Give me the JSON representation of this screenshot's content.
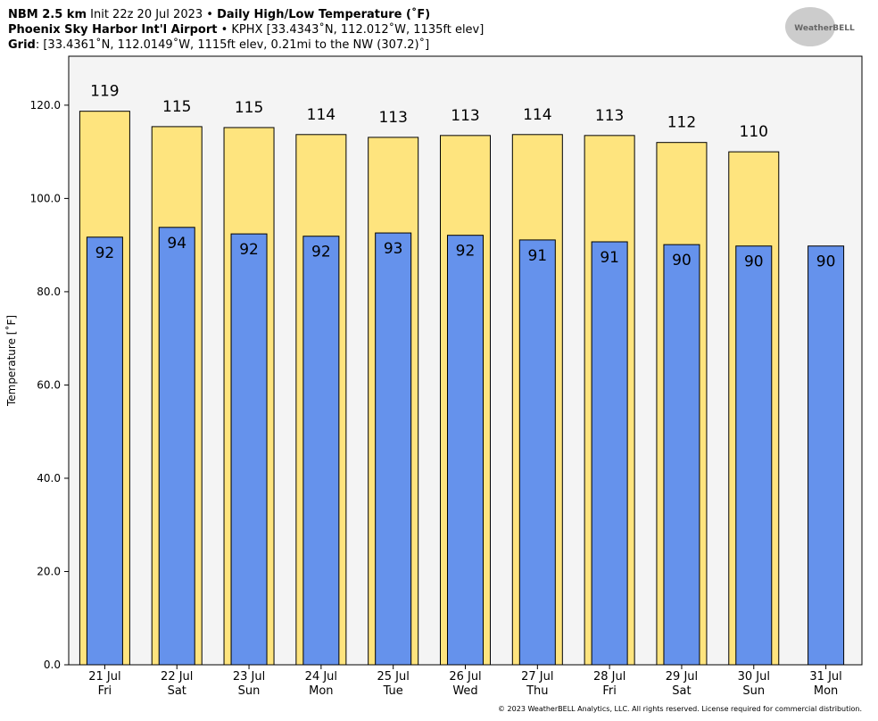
{
  "header": {
    "line1": {
      "model": "NBM 2.5 km",
      "init": "Init 22z 20 Jul 2023 •",
      "product": "Daily High/Low Temperature (˚F)"
    },
    "line2": {
      "station": "Phoenix Sky Harbor Int'l Airport",
      "info": "• KPHX [33.4343˚N, 112.012˚W, 1135ft elev]"
    },
    "line3": {
      "label": "Grid",
      "info": ": [33.4361˚N, 112.0149˚W, 1115ft elev, 0.21mi to the NW (307.2)˚]"
    },
    "logo": "WeatherBELL"
  },
  "footer": "© 2023 WeatherBELL Analytics, LLC. All rights reserved. License required for commercial distribution.",
  "chart_data": {
    "type": "bar",
    "ylabel": "Temperature [˚F]",
    "categories": [
      [
        "21 Jul",
        "Fri"
      ],
      [
        "22 Jul",
        "Sat"
      ],
      [
        "23 Jul",
        "Sun"
      ],
      [
        "24 Jul",
        "Mon"
      ],
      [
        "25 Jul",
        "Tue"
      ],
      [
        "26 Jul",
        "Wed"
      ],
      [
        "27 Jul",
        "Thu"
      ],
      [
        "28 Jul",
        "Fri"
      ],
      [
        "29 Jul",
        "Sat"
      ],
      [
        "30 Jul",
        "Sun"
      ],
      [
        "31 Jul",
        "Mon"
      ]
    ],
    "series": [
      {
        "name": "High",
        "color": "#fee47e",
        "values": [
          118.7,
          115.4,
          115.2,
          113.7,
          113.1,
          113.5,
          113.7,
          113.5,
          112.0,
          110.0,
          null
        ],
        "value_labels": [
          "119",
          "115",
          "115",
          "114",
          "113",
          "113",
          "114",
          "113",
          "112",
          "110",
          null
        ]
      },
      {
        "name": "Low",
        "color": "#6592ec",
        "values": [
          91.7,
          93.8,
          92.4,
          91.9,
          92.6,
          92.1,
          91.1,
          90.7,
          90.1,
          89.8,
          89.8
        ],
        "value_labels": [
          "92",
          "94",
          "92",
          "92",
          "93",
          "92",
          "91",
          "91",
          "90",
          "90",
          "90"
        ]
      }
    ],
    "ylim": [
      0,
      130.5
    ],
    "yticks": [
      {
        "value": 0,
        "label": "0.0"
      },
      {
        "value": 20,
        "label": "20.0"
      },
      {
        "value": 40,
        "label": "40.0"
      },
      {
        "value": 60,
        "label": "60.0"
      },
      {
        "value": 80,
        "label": "80.0"
      },
      {
        "value": 100,
        "label": "100.0"
      },
      {
        "value": 120,
        "label": "120.0"
      }
    ]
  }
}
